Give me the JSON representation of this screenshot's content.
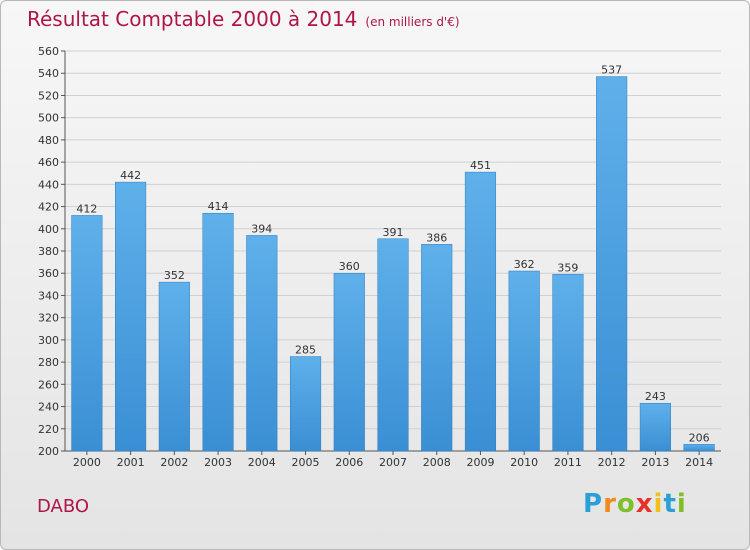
{
  "title": "Résultat Comptable 2000 à 2014",
  "subtitle": "(en milliers d'€)",
  "commune": "DABO",
  "logo": {
    "letters": [
      "P",
      "r",
      "o",
      "x",
      "i",
      "t",
      "i"
    ],
    "colors": [
      "#2a9fd8",
      "#f08a1c",
      "#7fbf2a",
      "#e8302b",
      "#f2c01c",
      "#2a9fd8",
      "#7fbf2a"
    ]
  },
  "colors": {
    "bar": "#3a8fd4",
    "bar_light": "#5fb0ea",
    "title": "#b0154a"
  },
  "chart_data": {
    "type": "bar",
    "title": "Résultat Comptable 2000 à 2014",
    "subtitle": "(en milliers d'€)",
    "xlabel": "",
    "ylabel": "",
    "categories": [
      "2000",
      "2001",
      "2002",
      "2003",
      "2004",
      "2005",
      "2006",
      "2007",
      "2008",
      "2009",
      "2010",
      "2011",
      "2012",
      "2013",
      "2014"
    ],
    "values": [
      412,
      442,
      352,
      414,
      394,
      285,
      360,
      391,
      386,
      451,
      362,
      359,
      537,
      243,
      206
    ],
    "ylim": [
      200,
      560
    ],
    "yticks": [
      200,
      220,
      240,
      260,
      280,
      300,
      320,
      340,
      360,
      380,
      400,
      420,
      440,
      460,
      480,
      500,
      520,
      540,
      560
    ],
    "grid": true
  }
}
